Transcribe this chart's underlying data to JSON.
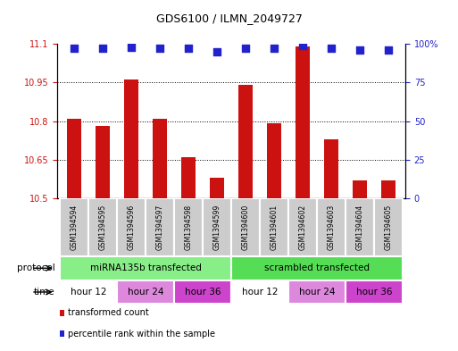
{
  "title": "GDS6100 / ILMN_2049727",
  "samples": [
    "GSM1394594",
    "GSM1394595",
    "GSM1394596",
    "GSM1394597",
    "GSM1394598",
    "GSM1394599",
    "GSM1394600",
    "GSM1394601",
    "GSM1394602",
    "GSM1394603",
    "GSM1394604",
    "GSM1394605"
  ],
  "bar_values": [
    10.81,
    10.78,
    10.96,
    10.81,
    10.66,
    10.58,
    10.94,
    10.79,
    11.09,
    10.73,
    10.57,
    10.57
  ],
  "percentile_values": [
    97,
    97,
    98,
    97,
    97,
    95,
    97,
    97,
    99,
    97,
    96,
    96
  ],
  "bar_color": "#cc1111",
  "dot_color": "#2222cc",
  "ylim_left": [
    10.5,
    11.1
  ],
  "ylim_right": [
    0,
    100
  ],
  "yticks_left": [
    10.5,
    10.65,
    10.8,
    10.95,
    11.1
  ],
  "yticks_right": [
    0,
    25,
    50,
    75,
    100
  ],
  "ytick_labels_right": [
    "0",
    "25",
    "50",
    "75",
    "100%"
  ],
  "protocol_groups": [
    {
      "label": "miRNA135b transfected",
      "start": 0,
      "end": 6,
      "color": "#88ee88"
    },
    {
      "label": "scrambled transfected",
      "start": 6,
      "end": 12,
      "color": "#55dd55"
    }
  ],
  "time_groups": [
    {
      "label": "hour 12",
      "start": 0,
      "end": 2,
      "color": "#ffffff"
    },
    {
      "label": "hour 24",
      "start": 2,
      "end": 4,
      "color": "#dd88dd"
    },
    {
      "label": "hour 36",
      "start": 4,
      "end": 6,
      "color": "#cc44cc"
    },
    {
      "label": "hour 12",
      "start": 6,
      "end": 8,
      "color": "#ffffff"
    },
    {
      "label": "hour 24",
      "start": 8,
      "end": 10,
      "color": "#dd88dd"
    },
    {
      "label": "hour 36",
      "start": 10,
      "end": 12,
      "color": "#cc44cc"
    }
  ],
  "legend_items": [
    {
      "label": "transformed count",
      "color": "#cc1111"
    },
    {
      "label": "percentile rank within the sample",
      "color": "#2222cc"
    }
  ],
  "protocol_label": "protocol",
  "time_label": "time",
  "bar_width": 0.5,
  "dot_size": 35,
  "background_color": "#ffffff",
  "sample_box_color": "#cccccc"
}
